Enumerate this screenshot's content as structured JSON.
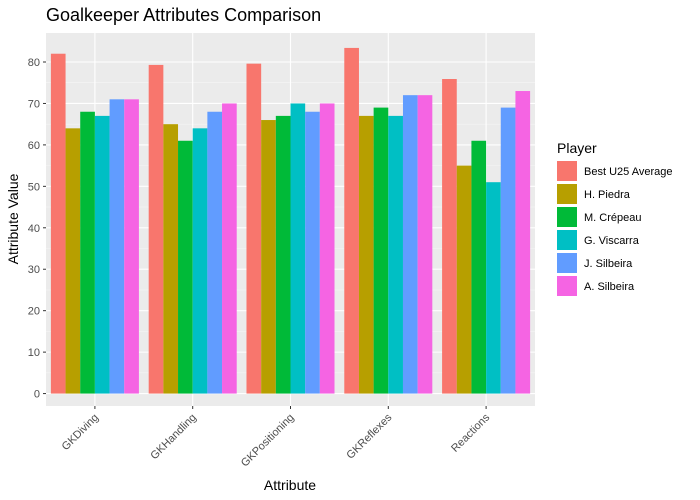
{
  "chart_data": {
    "type": "bar",
    "title": "Goalkeeper Attributes Comparison",
    "xlabel": "Attribute",
    "ylabel": "Attribute Value",
    "categories": [
      "GKDiving",
      "GKHandling",
      "GKPositioning",
      "GKReflexes",
      "Reactions"
    ],
    "ylim": [
      -3,
      87
    ],
    "yticks": [
      0,
      10,
      20,
      30,
      40,
      50,
      60,
      70,
      80
    ],
    "grid": true,
    "background": "#ebebeb",
    "legend_title": "Player",
    "legend_position": "right",
    "series": [
      {
        "name": "Best U25 Average",
        "color": "#f8766d",
        "values": [
          82,
          79.3,
          79.6,
          83.4,
          75.9
        ]
      },
      {
        "name": "H. Piedra",
        "color": "#b79f00",
        "values": [
          64,
          65,
          66,
          67,
          55
        ]
      },
      {
        "name": "M. Crépeau",
        "color": "#00ba38",
        "values": [
          68,
          61,
          67,
          69,
          61
        ]
      },
      {
        "name": "G. Viscarra",
        "color": "#00bfc4",
        "values": [
          67,
          64,
          70,
          67,
          51
        ]
      },
      {
        "name": "J. Silbeira",
        "color": "#619cff",
        "values": [
          71,
          68,
          68,
          72,
          69
        ]
      },
      {
        "name": "A. Silbeira",
        "color": "#f564e3",
        "values": [
          71,
          70,
          70,
          72,
          73
        ]
      }
    ]
  }
}
